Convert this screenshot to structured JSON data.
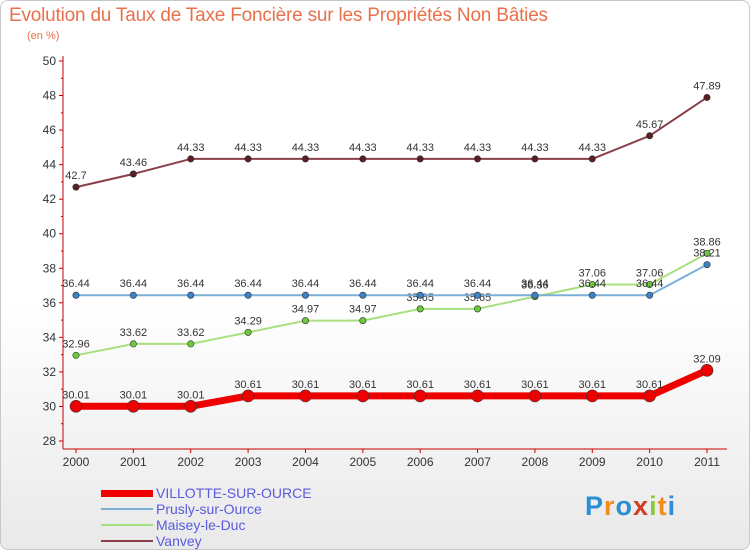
{
  "title": "Evolution du Taux de Taxe Foncière sur les Propriétés Non Bâties",
  "unit": "(en %)",
  "logo": {
    "text": "Proxiti",
    "letters": [
      "P",
      "r",
      "o",
      "x",
      "i",
      "t",
      "i"
    ],
    "colors": [
      "#2c8fd6",
      "#f28c1c",
      "#2c8fd6",
      "#d43b24",
      "#8cc83c",
      "#f28c1c",
      "#2c8fd6"
    ]
  },
  "chart_data": {
    "type": "line",
    "x": [
      "2000",
      "2001",
      "2002",
      "2003",
      "2004",
      "2005",
      "2006",
      "2007",
      "2008",
      "2009",
      "2010",
      "2011"
    ],
    "ylim": [
      28,
      50
    ],
    "yticks": [
      28,
      30,
      32,
      34,
      36,
      38,
      40,
      42,
      44,
      46,
      48,
      50
    ],
    "grid": false,
    "legend_position": "bottom-left",
    "series": [
      {
        "name": "VILLOTTE-SUR-OURCE",
        "color": "#ee0000",
        "marker": "#ee0000",
        "width": 7,
        "values": [
          30.01,
          30.01,
          30.01,
          30.61,
          30.61,
          30.61,
          30.61,
          30.61,
          30.61,
          30.61,
          30.61,
          32.09
        ],
        "labels": [
          "30.01",
          "30.01",
          "30.01",
          "30.61",
          "30.61",
          "30.61",
          "30.61",
          "30.61",
          "30.61",
          "30.61",
          "30.61",
          "32.09"
        ]
      },
      {
        "name": "Prusly-sur-Ource",
        "color": "#7ab0d8",
        "marker": "#3c82c8",
        "width": 2,
        "values": [
          36.44,
          36.44,
          36.44,
          36.44,
          36.44,
          36.44,
          36.44,
          36.44,
          36.44,
          36.44,
          36.44,
          38.21
        ],
        "labels": [
          "36.44",
          "36.44",
          "36.44",
          "36.44",
          "36.44",
          "36.44",
          "36.44",
          "36.44",
          "36.44",
          "36.44",
          "36.44",
          "38.21"
        ]
      },
      {
        "name": "Maisey-le-Duc",
        "color": "#a8e080",
        "marker": "#6cc83c",
        "width": 2,
        "values": [
          32.96,
          33.62,
          33.62,
          34.29,
          34.97,
          34.97,
          35.65,
          35.65,
          36.36,
          37.06,
          37.06,
          38.86
        ],
        "labels": [
          "32.96",
          "33.62",
          "33.62",
          "34.29",
          "34.97",
          "34.97",
          "35.65",
          "35.65",
          "36.36",
          "37.06",
          "37.06",
          "38.86"
        ]
      },
      {
        "name": "Vanvey",
        "color": "#8a4048",
        "marker": "#5a1e24",
        "width": 2,
        "values": [
          42.7,
          43.46,
          44.33,
          44.33,
          44.33,
          44.33,
          44.33,
          44.33,
          44.33,
          44.33,
          45.67,
          47.89
        ],
        "labels": [
          "42.7",
          "43.46",
          "44.33",
          "44.33",
          "44.33",
          "44.33",
          "44.33",
          "44.33",
          "44.33",
          "44.33",
          "45.67",
          "47.89"
        ]
      }
    ]
  }
}
